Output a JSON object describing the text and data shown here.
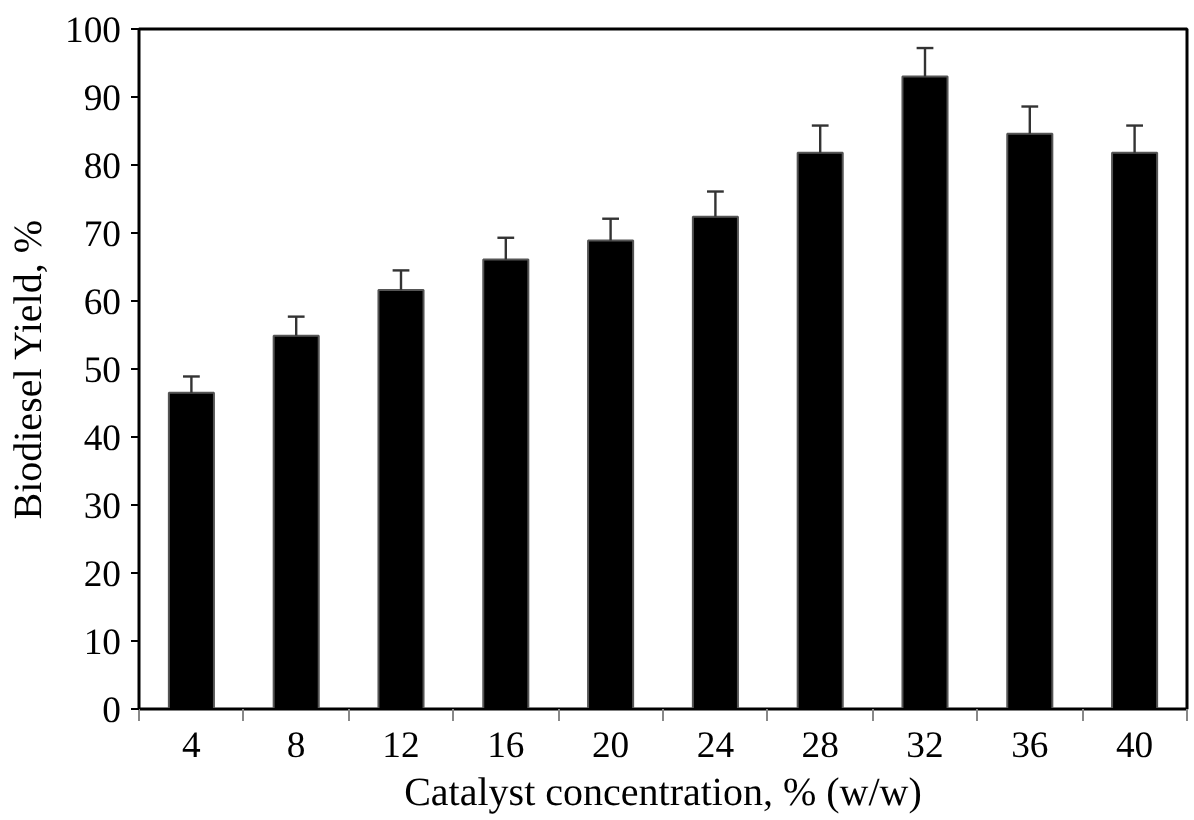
{
  "chart_data": {
    "type": "bar",
    "xlabel": "Catalyst concentration, % (w/w)",
    "ylabel": "Biodiesel Yield, %",
    "categories": [
      "4",
      "8",
      "12",
      "16",
      "20",
      "24",
      "28",
      "32",
      "36",
      "40"
    ],
    "values": [
      46.5,
      54.9,
      61.6,
      66.1,
      68.9,
      72.4,
      81.8,
      93.0,
      84.6,
      81.8
    ],
    "errors": [
      [
        46.5,
        48.9
      ],
      [
        54.9,
        57.7
      ],
      [
        61.6,
        64.5
      ],
      [
        66.1,
        69.3
      ],
      [
        68.9,
        72.1
      ],
      [
        72.4,
        76.1
      ],
      [
        81.8,
        85.8
      ],
      [
        93.0,
        97.2
      ],
      [
        84.6,
        88.6
      ],
      [
        81.8,
        85.8
      ]
    ],
    "color": "#000000",
    "ylim": [
      0,
      100
    ],
    "yticks": [
      0,
      10,
      20,
      30,
      40,
      50,
      60,
      70,
      80,
      90,
      100
    ],
    "grid": false
  }
}
